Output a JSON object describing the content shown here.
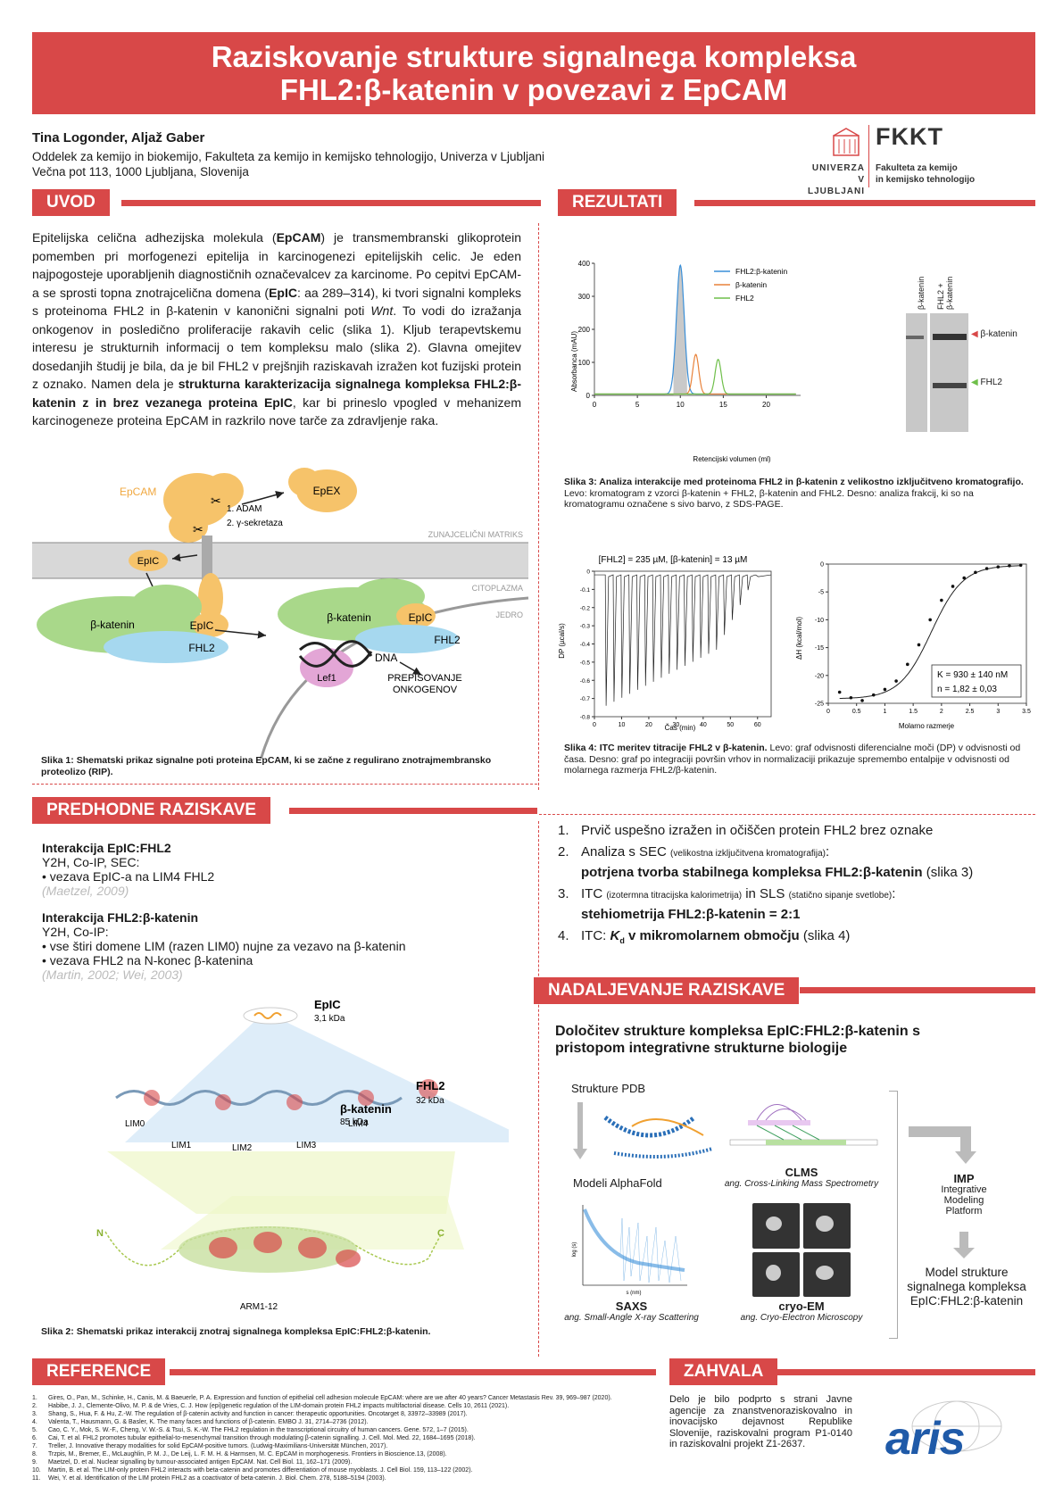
{
  "title": {
    "line1": "Raziskovanje strukture signalnega kompleksa",
    "line2": "FHL2:β-katenin v povezavi z EpCAM"
  },
  "authors": "Tina Logonder, Aljaž Gaber",
  "affiliation": {
    "line1": "Oddelek za kemijo in biokemijo, Fakulteta za kemijo in kemijsko tehnologijo, Univerza v Ljubljani",
    "line2": "Večna pot 113, 1000 Ljubljana, Slovenija"
  },
  "logo": {
    "fkkt": "FKKT",
    "univerza1": "UNIVERZA",
    "univerza2": "V LJUBLJANI",
    "fak1": "Fakulteta za kemijo",
    "fak2": "in kemijsko tehnologijo"
  },
  "sections": {
    "uvod": "UVOD",
    "rezultati": "REZULTATI",
    "predhodne": "PREDHODNE RAZISKAVE",
    "nadaljevanje": "NADALJEVANJE RAZISKAVE",
    "reference": "REFERENCE",
    "zahvala": "ZAHVALA"
  },
  "uvod_text": {
    "p1a": "Epitelijska celična adhezijska molekula (",
    "epcam": "EpCAM",
    "p1b": ") je transmembranski glikoprotein pomemben pri morfogenezi epitelija in karcinogenezi epitelijskih celic. Je eden najpogosteje uporabljenih diagnostičnih označevalcev za karcinome. Po cepitvi EpCAM-a se sprosti topna znotrajcelična domena (",
    "epic": "EpIC",
    "p1c": ": aa 289–314), ki tvori signalni kompleks s proteinoma FHL2 in β-katenin v kanonični signalni poti ",
    "wnt": "Wnt",
    "p1d": ". To vodi do izražanja onkogenov in posledično proliferacije rakavih celic (slika 1). Kljub terapevtskemu interesu je strukturnih informacij o tem kompleksu malo (slika 2). Glavna omejitev dosedanjih študij je bila, da je bil FHL2 v prejšnjih raziskavah izražen kot fuzijski protein z oznako. Namen dela je ",
    "bold": "strukturna karakterizacija signalnega kompleksa FHL2:β-katenin z in brez vezanega proteina EpIC",
    "p1e": ", kar bi prineslo vpogled v mehanizem karcinogeneze proteina EpCAM in razkrilo nove tarče za zdravljenje raka."
  },
  "fig1": {
    "epcam": "EpCAM",
    "epex": "EpEX",
    "matrix": "ZUNAJCELIČNI MATRIKS",
    "adam": "1. ADAM",
    "gamma": "2. γ-sekretaza",
    "cytoplasm": "CITOPLAZMA",
    "nucleus": "JEDRO",
    "epic": "EpIC",
    "bkat": "β-katenin",
    "fhl2": "FHL2",
    "dna": "DNA",
    "lef1": "Lef1",
    "trans1": "PREPISOVANJE",
    "trans2": "ONKOGENOV",
    "caption_bold": "Slika 1: Shematski prikaz signalne poti proteina EpCAM, ki se začne z regulirano znotrajmembransko proteolizo (RIP)."
  },
  "predhodne": {
    "h1": "Interakcija EpIC:FHL2",
    "m1": "Y2H, Co-IP, SEC:",
    "b1": "• vezava EpIC-a na LIM4 FHL2",
    "r1": "(Maetzel, 2009)",
    "h2": "Interakcija FHL2:β-katenin",
    "m2": "Y2H, Co-IP:",
    "b2a": "• vse štiri domene LIM (razen LIM0) nujne za vezavo na β-katenin",
    "b2b": "• vezava FHL2 na N-konec β-katenina",
    "r2": "(Martin, 2002; Wei, 2003)"
  },
  "fig2": {
    "epic": "EpIC",
    "epic_kda": "3,1 kDa",
    "fhl2": "FHL2",
    "fhl2_kda": "32 kDa",
    "bkat": "β-katenin",
    "bkat_kda": "85 kDa",
    "lim0": "LIM0",
    "lim1": "LIM1",
    "lim2": "LIM2",
    "lim3": "LIM3",
    "lim4": "LIM4",
    "n": "N",
    "c": "C",
    "arm": "ARM1-12",
    "caption": "Slika 2: Shematski prikaz interakcij znotraj signalnega kompleksa EpIC:FHL2:β-katenin."
  },
  "chart_data": [
    {
      "type": "line",
      "ylabel": "Absorbanca (mAU)",
      "xlabel": "Retencijski volumen (ml)",
      "xlim": [
        0,
        24
      ],
      "ylim": [
        0,
        400
      ],
      "xticks": [
        0,
        5,
        10,
        15,
        20
      ],
      "yticks": [
        0,
        100,
        200,
        300,
        400
      ],
      "legend": "top-right",
      "series": [
        {
          "name": "FHL2:β-katenin",
          "color": "#3a8fd8",
          "peak_x": 10.0,
          "peak_y": 390,
          "width": 0.45
        },
        {
          "name": "β-katenin",
          "color": "#e8823a",
          "peak_x": 11.8,
          "peak_y": 120,
          "width": 0.35
        },
        {
          "name": "FHL2",
          "color": "#6fbf4a",
          "peak_x": 14.4,
          "peak_y": 105,
          "width": 0.35
        }
      ]
    },
    {
      "type": "line",
      "title": "[FHL2] = 235 µM, [β-katenin] = 13 µM",
      "ylabel": "DP (µcal/s)",
      "xlabel": "Čas (min)",
      "xlim": [
        0,
        65
      ],
      "ylim": [
        -0.8,
        0
      ],
      "xticks": [
        0,
        10,
        20,
        30,
        40,
        50,
        60
      ],
      "yticks": [
        0,
        -0.1,
        -0.2,
        -0.3,
        -0.4,
        -0.5,
        -0.6,
        -0.7,
        -0.8
      ]
    },
    {
      "type": "scatter",
      "ylabel": "ΔH (kcal/mol)",
      "xlabel": "Molarno razmerje",
      "xlim": [
        0,
        3.5
      ],
      "ylim": [
        -25,
        0
      ],
      "xticks": [
        0,
        0.5,
        1,
        1.5,
        2,
        2.5,
        3,
        3.5
      ],
      "yticks": [
        0,
        -5,
        -10,
        -15,
        -20,
        -25
      ],
      "x": [
        0.2,
        0.4,
        0.6,
        0.8,
        1.0,
        1.2,
        1.4,
        1.6,
        1.8,
        2.0,
        2.2,
        2.4,
        2.6,
        2.8,
        3.0,
        3.2,
        3.4
      ],
      "y": [
        -23,
        -24,
        -24.5,
        -23.5,
        -22.5,
        -21,
        -18,
        -14.5,
        -10,
        -6.5,
        -4,
        -2.5,
        -1.5,
        -0.8,
        -0.5,
        -0.3,
        -0.2
      ],
      "kd": "K  = 930 ± 140 nM",
      "n": "n = 1,82 ± 0,03"
    }
  ],
  "fig3": {
    "lane1": "β-katenin",
    "lane2a": "FHL2 +",
    "lane2b": "β-katenin",
    "band1": "β-katenin",
    "band2": "FHL2",
    "caption_bold": "Slika 3: Analiza interakcije med proteinoma FHL2 in β-katenin z velikostno izključitveno kromatografijo.",
    "caption": " Levo: kromatogram z vzorci β-katenin + FHL2, β-katenin and FHL2. Desno: analiza frakcij, ki so na kromatogramu označene s sivo barvo, z SDS-PAGE."
  },
  "fig4": {
    "caption_bold": "Slika 4: ITC meritev titracije FHL2 v β-katenin.",
    "caption": " Levo: graf odvisnosti diferencialne moči (DP) v odvisnosti od časa. Desno: graf po integraciji površin vrhov in normalizaciji prikazuje spremembo entalpije v odvisnosti od molarnega razmerja FHL2/β-katenin."
  },
  "results": {
    "i1": "Prvič uspešno izražen in očiščen protein FHL2 brez oznake",
    "i2a": "Analiza s SEC",
    "i2s": "(velikostna izključitvena kromatografija)",
    "i2c": ":",
    "i2b": "potrjena tvorba stabilnega kompleksa FHL2:β-katenin",
    "i2d": " (slika 3)",
    "i3a": "ITC",
    "i3s": "(izotermna titracijska kalorimetrija)",
    "i3c": " in SLS",
    "i3s2": "(statično sipanje svetlobe)",
    "i3e": ":",
    "i3b": "stehiometrija FHL2:β-katenin = 2:1",
    "i4a": "ITC: ",
    "i4k": "K",
    "i4d": "d",
    "i4b": " v mikromolarnem območju",
    "i4c": " (slika 4)"
  },
  "nadaljevanje": {
    "title1": "Določitev strukture kompleksa EpIC:FHL2:β-katenin s",
    "title2": "pristopom integrativne strukturne biologije",
    "pdb": "Strukture PDB",
    "af": "Modeli AlphaFold",
    "clms": "CLMS",
    "clms_sub": "ang. Cross-Linking Mass Spectrometry",
    "saxs": "SAXS",
    "saxs_sub": "ang. Small-Angle X-ray Scattering",
    "cryo": "cryo-EM",
    "cryo_sub": "ang. Cryo-Electron Microscopy",
    "imp": "IMP",
    "imp1": "Integrative",
    "imp2": "Modeling",
    "imp3": "Platform",
    "model1": "Model strukture",
    "model2": "signalnega kompleksa",
    "model3": "EpIC:FHL2:β-katenin",
    "saxs_y": "log (s)",
    "saxs_x": "s (nm)"
  },
  "references": [
    "Gires, O., Pan, M., Schinke, H., Canis, M. & Baeuerle, P. A. Expression and function of epithelial cell adhesion molecule EpCAM: where are we after 40 years? Cancer Metastasis Rev. 39, 969–987 (2020).",
    "Habibe, J. J., Clemente-Olivo, M. P. & de Vries, C. J. How (epi)genetic regulation of the LIM-domain protein FHL2 impacts multifactorial disease. Cells 10, 2611 (2021).",
    "Shang, S., Hua, F. & Hu, Z.-W. The regulation of β-catenin activity and function in cancer: therapeutic opportunities. Oncotarget 8, 33972–33989 (2017).",
    "Valenta, T., Hausmann, G. & Basler, K. The many faces and functions of β-catenin. EMBO J. 31, 2714–2736 (2012).",
    "Cao, C. Y., Mok, S. W.-F., Cheng, V. W.-S. & Tsui, S. K.-W. The FHL2 regulation in the transcriptional circuitry of human cancers. Gene. 572, 1–7 (2015).",
    "Cai, T. et al. FHL2 promotes tubular epithelial-to-mesenchymal transition through modulating β-catenin signalling. J. Cell. Mol. Med. 22, 1684–1695 (2018).",
    "Treller, J. Innovative therapy modalities for solid EpCAM-positive tumors. (Ludwig-Maximilians-Universität München, 2017).",
    "Trzpis, M., Bremer, E., McLaughlin, P. M. J., De Leij, L. F. M. H. & Harmsen, M. C. EpCAM in morphogenesis. Frontiers in Bioscience.13, (2008).",
    "Maetzel, D. et al. Nuclear signalling by tumour-associated antigen EpCAM. Nat. Cell Biol. 11, 162–171 (2009).",
    "Martin, B. et al. The LIM-only protein FHL2 interacts with beta-catenin and promotes differentiation of mouse myoblasts. J. Cell Biol. 159, 113–122 (2002).",
    "Wei, Y. et al. Identification of the LIM protein FHL2 as a coactivator of beta-catenin. J. Biol. Chem. 278, 5188–5194 (2003)."
  ],
  "zahvala_text": "Delo je bilo podprto s strani Javne agencije za znanstvenoraziskovalno in inovacijsko dejavnost Republike Slovenije, raziskovalni program P1-0140 in raziskovalni projekt Z1-2637.",
  "aris": "aris"
}
